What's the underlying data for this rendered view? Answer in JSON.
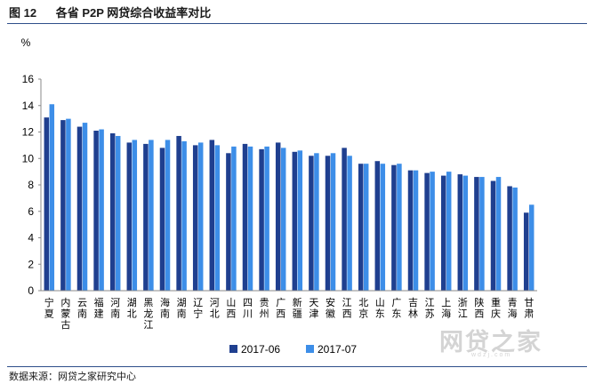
{
  "header": {
    "title": "图 12      各省 P2P 网贷综合收益率对比"
  },
  "footer": {
    "source": "数据来源：网贷之家研究中心"
  },
  "watermark": {
    "text": "网贷之家",
    "sub": "wdzj.com"
  },
  "colors": {
    "series_2017_06": "#1f3f8f",
    "series_2017_07": "#3d8ee8",
    "rule": "#2e4e8a"
  },
  "chart_data": {
    "type": "bar",
    "title": "各省 P2P 网贷综合收益率对比",
    "ylabel": "%",
    "xlabel": "",
    "ylim": [
      0,
      16
    ],
    "yticks": [
      0,
      2,
      4,
      6,
      8,
      10,
      12,
      14,
      16
    ],
    "grid": false,
    "legend": "bottom",
    "categories": [
      "宁夏",
      "内蒙古",
      "云南",
      "福建",
      "河南",
      "湖北",
      "黑龙江",
      "海南",
      "湖南",
      "辽宁",
      "河北",
      "山西",
      "四川",
      "贵州",
      "广西",
      "新疆",
      "天津",
      "安徽",
      "江西",
      "北京",
      "山东",
      "广东",
      "吉林",
      "江苏",
      "上海",
      "浙江",
      "陕西",
      "重庆",
      "青海",
      "甘肃"
    ],
    "series": [
      {
        "name": "2017-06",
        "values": [
          13.1,
          12.9,
          12.4,
          12.1,
          11.9,
          11.2,
          11.1,
          10.8,
          11.7,
          11.0,
          11.4,
          10.4,
          11.1,
          10.7,
          11.2,
          10.5,
          10.2,
          10.2,
          10.8,
          9.6,
          9.8,
          9.5,
          9.1,
          8.9,
          8.7,
          8.8,
          8.6,
          8.3,
          7.9,
          5.9
        ]
      },
      {
        "name": "2017-07",
        "values": [
          14.1,
          13.0,
          12.7,
          12.2,
          11.7,
          11.4,
          11.4,
          11.4,
          11.3,
          11.2,
          11.0,
          10.9,
          10.9,
          10.9,
          10.8,
          10.6,
          10.4,
          10.4,
          10.2,
          9.6,
          9.6,
          9.6,
          9.1,
          9.0,
          9.0,
          8.7,
          8.6,
          8.6,
          7.8,
          6.5
        ]
      }
    ]
  }
}
